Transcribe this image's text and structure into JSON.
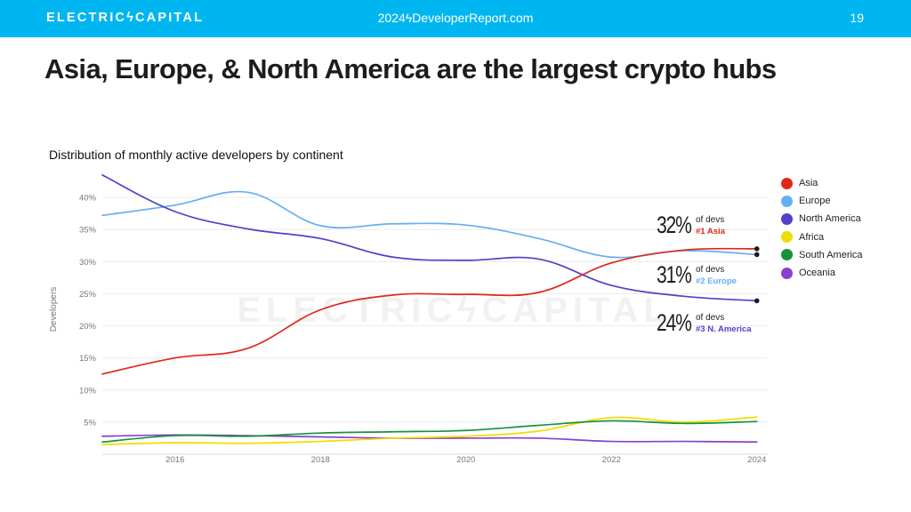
{
  "header": {
    "brand": "ELECTRICϟCAPITAL",
    "report": "2024ϟDeveloperReport.com",
    "page": "19"
  },
  "headline": "Asia, Europe, & North America are the largest crypto hubs",
  "watermark": "ELECTRICϟCAPITAL",
  "callouts": [
    {
      "pct": "32%",
      "of": "of devs",
      "rank": "#1 Asia",
      "color": "#e0261b"
    },
    {
      "pct": "31%",
      "of": "of devs",
      "rank": "#2 Europe",
      "color": "#64aef4"
    },
    {
      "pct": "24%",
      "of": "of devs",
      "rank": "#3 N. America",
      "color": "#5041c8"
    }
  ],
  "chart_data": {
    "type": "line",
    "title": "Distribution of monthly active developers by continent",
    "ylabel": "Developers",
    "xlim": [
      2015,
      2024.15
    ],
    "ylim": [
      0,
      45
    ],
    "x_ticks": [
      2016,
      2018,
      2020,
      2022,
      2024
    ],
    "y_ticks": [
      {
        "v": 5,
        "label": "5%"
      },
      {
        "v": 10,
        "label": "10%"
      },
      {
        "v": 15,
        "label": "15%"
      },
      {
        "v": 20,
        "label": "20%"
      },
      {
        "v": 25,
        "label": "25%"
      },
      {
        "v": 30,
        "label": "30%"
      },
      {
        "v": 35,
        "label": "35%"
      },
      {
        "v": 40,
        "label": "40%"
      }
    ],
    "grid": true,
    "legend_position": "right",
    "series": [
      {
        "name": "Asia",
        "color": "#e0261b",
        "x": [
          2015,
          2016,
          2017,
          2018,
          2019,
          2020,
          2021,
          2022,
          2023,
          2024
        ],
        "y": [
          12.5,
          15.0,
          16.5,
          22.5,
          24.8,
          24.9,
          25.2,
          29.8,
          31.8,
          32.0
        ]
      },
      {
        "name": "Europe",
        "color": "#64aef4",
        "x": [
          2015,
          2016,
          2017,
          2018,
          2019,
          2020,
          2021,
          2022,
          2023,
          2024
        ],
        "y": [
          37.2,
          38.8,
          40.8,
          35.6,
          35.9,
          35.7,
          33.6,
          30.7,
          31.7,
          31.1
        ]
      },
      {
        "name": "North America",
        "color": "#5041c8",
        "x": [
          2015,
          2016,
          2017,
          2018,
          2019,
          2020,
          2021,
          2022,
          2023,
          2024
        ],
        "y": [
          43.5,
          37.8,
          35.1,
          33.6,
          30.7,
          30.2,
          30.4,
          26.3,
          24.6,
          23.9
        ]
      },
      {
        "name": "Africa",
        "color": "#f2dc00",
        "x": [
          2015,
          2016,
          2017,
          2018,
          2019,
          2020,
          2021,
          2022,
          2023,
          2024
        ],
        "y": [
          1.5,
          1.8,
          1.7,
          2.0,
          2.5,
          2.8,
          3.6,
          5.7,
          5.0,
          5.8
        ]
      },
      {
        "name": "South America",
        "color": "#16923c",
        "x": [
          2015,
          2016,
          2017,
          2018,
          2019,
          2020,
          2021,
          2022,
          2023,
          2024
        ],
        "y": [
          1.9,
          2.9,
          2.8,
          3.3,
          3.5,
          3.7,
          4.5,
          5.2,
          4.8,
          5.1
        ]
      },
      {
        "name": "Oceania",
        "color": "#8a3fcf",
        "x": [
          2015,
          2016,
          2017,
          2018,
          2019,
          2020,
          2021,
          2022,
          2023,
          2024
        ],
        "y": [
          2.8,
          3.0,
          2.9,
          2.7,
          2.5,
          2.5,
          2.5,
          2.0,
          2.0,
          1.9
        ]
      }
    ]
  }
}
